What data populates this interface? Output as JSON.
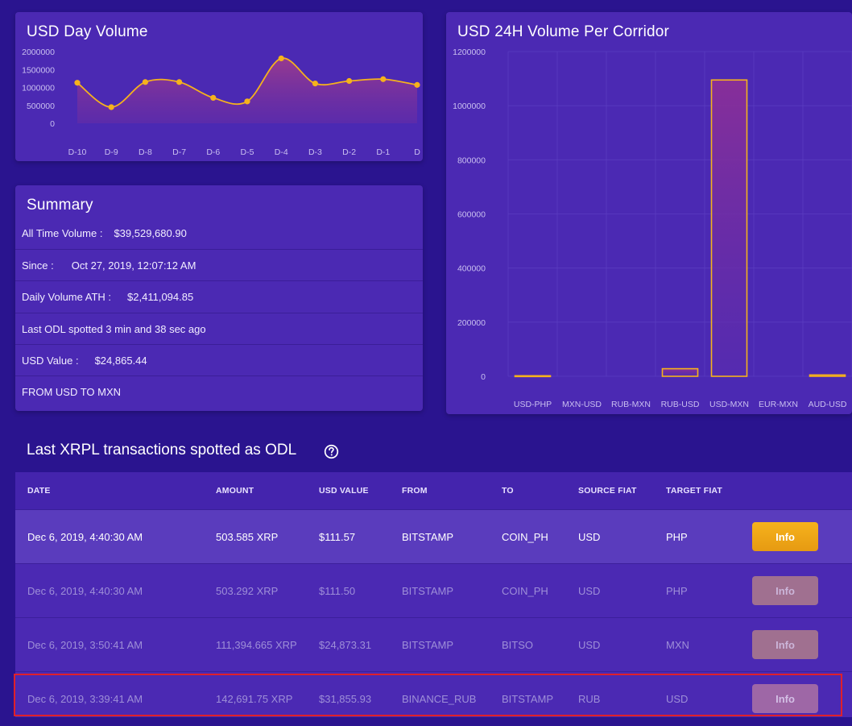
{
  "day_volume": {
    "title": "USD Day Volume"
  },
  "corridor": {
    "title": "USD 24H Volume Per Corridor"
  },
  "chart_data": [
    {
      "type": "area",
      "title": "USD Day Volume",
      "categories": [
        "D-10",
        "D-9",
        "D-8",
        "D-7",
        "D-6",
        "D-5",
        "D-4",
        "D-3",
        "D-2",
        "D-1",
        "D"
      ],
      "values": [
        1130000,
        450000,
        1150000,
        1150000,
        710000,
        610000,
        1810000,
        1110000,
        1180000,
        1230000,
        1070000
      ],
      "y_ticks": [
        "2000000",
        "1500000",
        "1000000",
        "500000",
        "0"
      ],
      "ylim": [
        0,
        2000000
      ],
      "color": "#f6b21c"
    },
    {
      "type": "bar",
      "title": "USD 24H Volume Per Corridor",
      "categories": [
        "USD-PHP",
        "MXN-USD",
        "RUB-MXN",
        "RUB-USD",
        "USD-MXN",
        "EUR-MXN",
        "AUD-USD"
      ],
      "values": [
        2000,
        0,
        0,
        28000,
        1095000,
        0,
        5000
      ],
      "y_ticks": [
        "1200000",
        "1000000",
        "800000",
        "600000",
        "400000",
        "200000",
        "0"
      ],
      "ylim": [
        0,
        1200000
      ],
      "color": "#f6b21c"
    }
  ],
  "summary": {
    "title": "Summary",
    "rows": [
      {
        "label": "All Time Volume :",
        "value": "$39,529,680.90"
      },
      {
        "label": "Since :",
        "value": "Oct 27, 2019, 12:07:12 AM"
      },
      {
        "label": "Daily Volume ATH :",
        "value": "$2,411,094.85"
      },
      {
        "label": "Last ODL spotted 3 min and 38 sec ago",
        "value": ""
      },
      {
        "label": "USD Value :",
        "value": "$24,865.44"
      },
      {
        "label": "FROM USD TO MXN",
        "value": ""
      }
    ]
  },
  "transactions": {
    "title": "Last XRPL transactions spotted as ODL",
    "help_icon": "question-circle-icon",
    "columns": [
      "DATE",
      "AMOUNT",
      "USD VALUE",
      "FROM",
      "TO",
      "SOURCE FIAT",
      "TARGET FIAT"
    ],
    "rows": [
      {
        "date": "Dec 6, 2019, 4:40:30 AM",
        "amount": "503.585 XRP",
        "usd": "$111.57",
        "from": "BITSTAMP",
        "to": "COIN_PH",
        "src": "USD",
        "tgt": "PHP",
        "btn": "Info"
      },
      {
        "date": "Dec 6, 2019, 4:40:30 AM",
        "amount": "503.292 XRP",
        "usd": "$111.50",
        "from": "BITSTAMP",
        "to": "COIN_PH",
        "src": "USD",
        "tgt": "PHP",
        "btn": "Info"
      },
      {
        "date": "Dec 6, 2019, 3:50:41 AM",
        "amount": "111,394.665 XRP",
        "usd": "$24,873.31",
        "from": "BITSTAMP",
        "to": "BITSO",
        "src": "USD",
        "tgt": "MXN",
        "btn": "Info"
      },
      {
        "date": "Dec 6, 2019, 3:39:41 AM",
        "amount": "142,691.75 XRP",
        "usd": "$31,855.93",
        "from": "BINANCE_RUB",
        "to": "BITSTAMP",
        "src": "RUB",
        "tgt": "USD",
        "btn": "Info"
      }
    ]
  },
  "colors": {
    "background": "#2a148f",
    "card": "#4b29b3",
    "accent": "#f6b21c",
    "highlight": "#e0202a"
  }
}
